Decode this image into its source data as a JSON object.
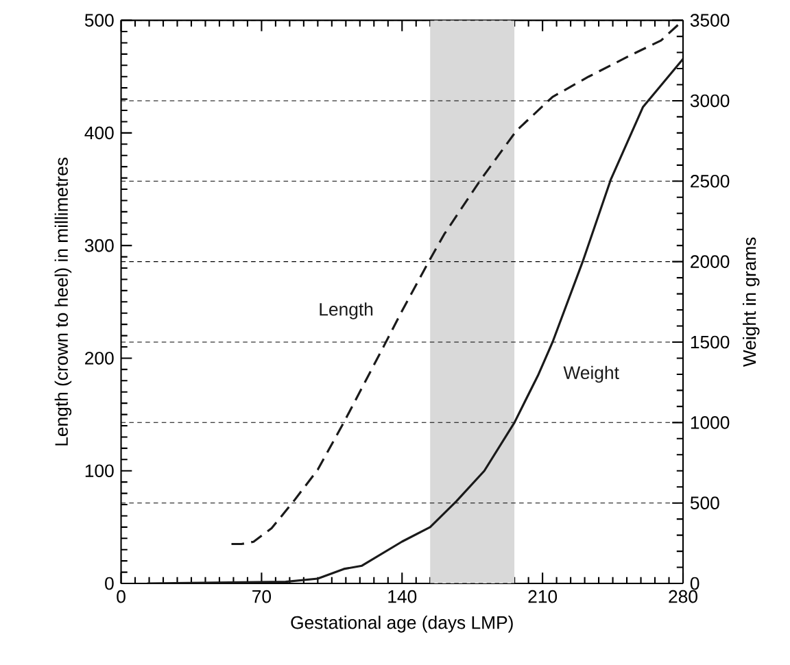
{
  "chart_data": {
    "type": "line",
    "xlabel": "Gestational age (days LMP)",
    "ylabel": "Length (crown to heel) in millimetres",
    "y2label": "Weight in grams",
    "xlim": [
      0,
      280
    ],
    "xticks": [
      0,
      70,
      140,
      210,
      280
    ],
    "ylim": [
      0,
      500
    ],
    "yticks": [
      0,
      100,
      200,
      300,
      400,
      500
    ],
    "y2lim": [
      0,
      3500
    ],
    "y2ticks": [
      0,
      500,
      1000,
      1500,
      2000,
      2500,
      3000,
      3500
    ],
    "grid": "y",
    "marker": "none",
    "bands": [
      {
        "axis": "x",
        "from": 154,
        "to": 196,
        "color": "#d9d9d9"
      }
    ],
    "series": [
      {
        "name": "Length",
        "color": "#1a1a1a",
        "line_style": "dashed",
        "x": [
          55,
          60,
          66,
          75,
          86,
          98,
          111,
          131,
          140,
          154,
          161,
          179,
          197,
          215,
          233,
          255,
          269,
          280
        ],
        "values": [
          35,
          35,
          37,
          49,
          73,
          101,
          143,
          211,
          242,
          288,
          310,
          358,
          402,
          432,
          450,
          470,
          482,
          500
        ]
      },
      {
        "name": "Weight",
        "color": "#1a1a1a",
        "line_style": "solid",
        "axis": "y2",
        "x": [
          13,
          82,
          98,
          111,
          120,
          140,
          154,
          167,
          181,
          196,
          208,
          215,
          230,
          244,
          260,
          280
        ],
        "values": [
          0,
          10,
          30,
          90,
          110,
          260,
          350,
          510,
          700,
          1000,
          1300,
          1500,
          2000,
          2510,
          2960,
          3260
        ]
      }
    ]
  }
}
